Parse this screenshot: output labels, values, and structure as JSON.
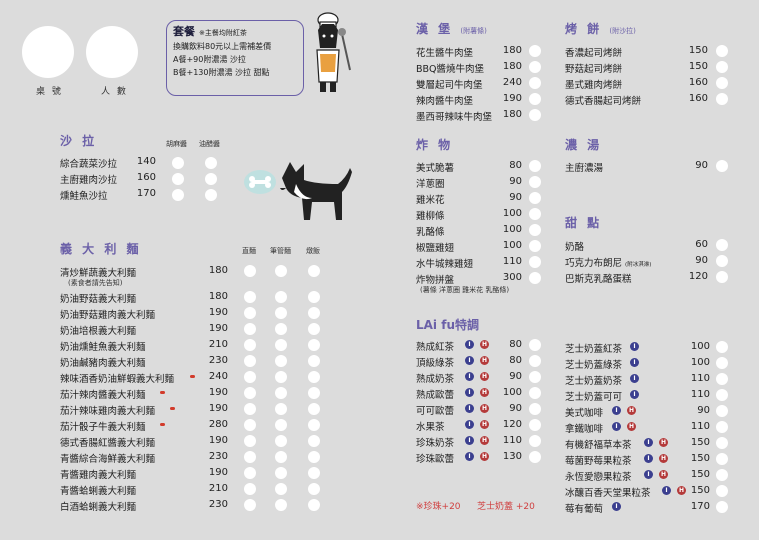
{
  "header": {
    "table_label": "桌 號",
    "people_label": "人 數",
    "combo": {
      "title": "套餐",
      "note": "※主餐均附紅茶",
      "lines": [
        "換購飲料80元以上需補差價",
        "A餐+90附濃湯 沙拉",
        "B餐+130附濃湯 沙拉 甜點"
      ]
    }
  },
  "salad": {
    "title": "沙 拉",
    "cols": [
      "胡麻醬",
      "油醋醬"
    ],
    "items": [
      {
        "name": "綜合蔬菜沙拉",
        "price": "140"
      },
      {
        "name": "主廚雞肉沙拉",
        "price": "160"
      },
      {
        "name": "燻鮭魚沙拉",
        "price": "170"
      }
    ]
  },
  "pasta": {
    "title": "義 大 利 麵",
    "cols": [
      "直麵",
      "筆管麵",
      "燉飯"
    ],
    "vegan_note": "(素食者請先告知)",
    "items": [
      {
        "name": "清炒鮮蔬義大利麵",
        "price": "180"
      },
      {
        "name": "奶油野菇義大利麵",
        "price": "180"
      },
      {
        "name": "奶油野菇雞肉義大利麵",
        "price": "190"
      },
      {
        "name": "奶油培根義大利麵",
        "price": "190"
      },
      {
        "name": "奶油燻鮭魚義大利麵",
        "price": "210"
      },
      {
        "name": "奶油鹹豬肉義大利麵",
        "price": "230"
      },
      {
        "name": "辣味酒香奶油鮮蝦義大利麵",
        "price": "240"
      },
      {
        "name": "茄汁辣肉醬義大利麵",
        "price": "190"
      },
      {
        "name": "茄汁辣味雞肉義大利麵",
        "price": "190"
      },
      {
        "name": "茄汁骰子牛義大利麵",
        "price": "280"
      },
      {
        "name": "德式香腸紅醬義大利麵",
        "price": "190"
      },
      {
        "name": "青醬綜合海鮮義大利麵",
        "price": "230"
      },
      {
        "name": "青醬雞肉義大利麵",
        "price": "190"
      },
      {
        "name": "青醬蛤蜊義大利麵",
        "price": "210"
      },
      {
        "name": "白酒蛤蜊義大利麵",
        "price": "230"
      }
    ]
  },
  "burger": {
    "title": "漢 堡",
    "sub": "(附薯條)",
    "items": [
      {
        "name": "花生醬牛肉堡",
        "price": "180"
      },
      {
        "name": "BBQ醬燒牛肉堡",
        "price": "180"
      },
      {
        "name": "雙層起司牛肉堡",
        "price": "240"
      },
      {
        "name": "辣肉醬牛肉堡",
        "price": "190"
      },
      {
        "name": "墨西哥辣味牛肉堡",
        "price": "180"
      }
    ]
  },
  "fried": {
    "title": "炸 物",
    "items": [
      {
        "name": "美式脆薯",
        "price": "80"
      },
      {
        "name": "洋蔥圈",
        "price": "90"
      },
      {
        "name": "雞米花",
        "price": "90"
      },
      {
        "name": "雞柳條",
        "price": "100"
      },
      {
        "name": "乳酪條",
        "price": "100"
      },
      {
        "name": "椒鹽雞翅",
        "price": "100"
      },
      {
        "name": "水牛城辣雞翅",
        "price": "110"
      },
      {
        "name": "炸物拼盤",
        "price": "300"
      }
    ],
    "platter_note": "(薯條 洋蔥圈 雞米花 乳酪條)"
  },
  "pancake": {
    "title": "烤 餅",
    "sub": "(附沙拉)",
    "items": [
      {
        "name": "香濃起司烤餅",
        "price": "150"
      },
      {
        "name": "野菇起司烤餅",
        "price": "150"
      },
      {
        "name": "墨式雞肉烤餅",
        "price": "160"
      },
      {
        "name": "德式香腸起司烤餅",
        "price": "160"
      }
    ]
  },
  "soup": {
    "title": "濃 湯",
    "items": [
      {
        "name": "主廚濃湯",
        "price": "90"
      }
    ]
  },
  "dessert": {
    "title": "甜 點",
    "items": [
      {
        "name": "奶酪",
        "price": "60"
      },
      {
        "name": "巧克力布朗尼",
        "note": "(附冰淇淋)",
        "price": "90"
      },
      {
        "name": "巴斯克乳酪蛋糕",
        "price": "120"
      }
    ]
  },
  "special": {
    "title": "LAi fu特調",
    "badge_i": "I",
    "badge_h": "H",
    "left": [
      {
        "name": "熟成紅茶",
        "price": "80"
      },
      {
        "name": "頂級綠茶",
        "price": "80"
      },
      {
        "name": "熟成奶茶",
        "price": "90"
      },
      {
        "name": "熟成歐蕾",
        "price": "100"
      },
      {
        "name": "可可歐蕾",
        "price": "90"
      },
      {
        "name": "水果茶",
        "price": "120"
      },
      {
        "name": "珍珠奶茶",
        "price": "110"
      },
      {
        "name": "珍珠歐蕾",
        "price": "130"
      }
    ],
    "right": [
      {
        "name": "芝士奶蓋紅茶",
        "price": "100"
      },
      {
        "name": "芝士奶蓋綠茶",
        "price": "100"
      },
      {
        "name": "芝士奶蓋奶茶",
        "price": "110"
      },
      {
        "name": "芝士奶蓋可可",
        "price": "110"
      },
      {
        "name": "美式咖啡",
        "price": "90"
      },
      {
        "name": "拿鐵咖啡",
        "price": "110"
      },
      {
        "name": "有機舒福草本茶",
        "price": "150"
      },
      {
        "name": "莓菌野莓果粒茶",
        "price": "150"
      },
      {
        "name": "永恆愛戀果粒茶",
        "price": "150"
      },
      {
        "name": "冰釀百香天堂果粒茶",
        "price": "150"
      },
      {
        "name": "莓有葡萄",
        "price": "170"
      }
    ],
    "addon": "※珍珠+20",
    "addon2": "芝士奶蓋 +20"
  },
  "colors": {
    "accent": "#6b60a8",
    "background": "#dcdcdc",
    "badge_i": "#3b3f8f",
    "badge_h": "#b43a3a"
  }
}
